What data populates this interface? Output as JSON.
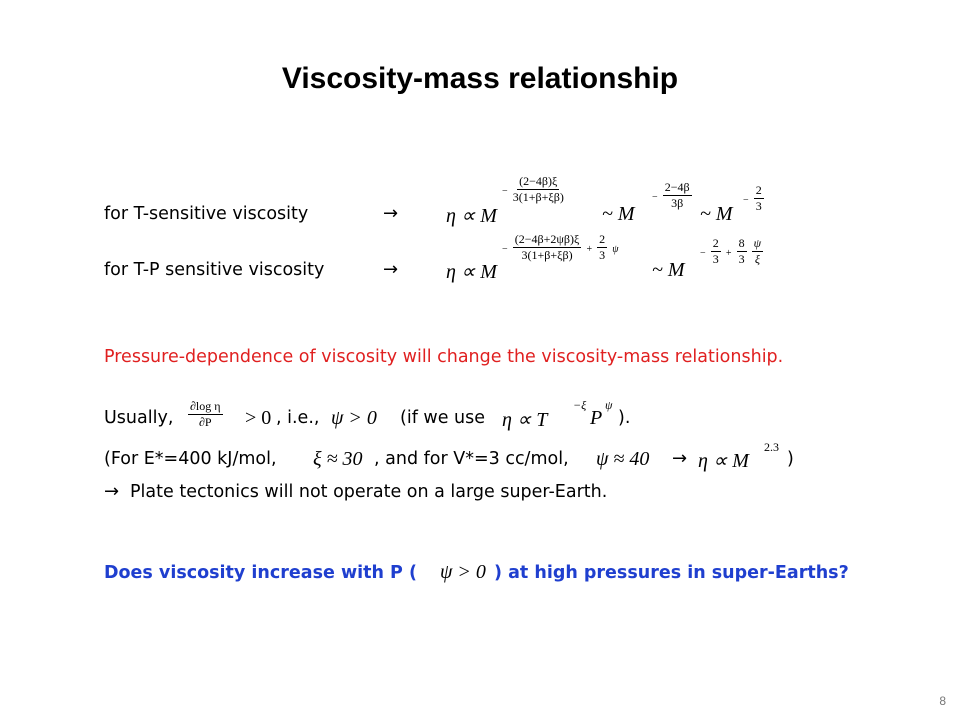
{
  "title": "Viscosity-mass relationship",
  "row1": {
    "label": "for T-sensitive viscosity",
    "arrow": "→",
    "eq_lhs": "η ∝ M",
    "exp1_sign": "−",
    "exp1_num": "(2−4β)ξ",
    "exp1_den": "3(1+β+ξβ)",
    "mid1": "~ M",
    "exp2_sign": "−",
    "exp2_num": "2−4β",
    "exp2_den": "3β",
    "mid2": "~ M",
    "exp3_sign": "−",
    "exp3_num": "2",
    "exp3_den": "3"
  },
  "row2": {
    "label": "for T-P sensitive viscosity",
    "arrow": "→",
    "eq_lhs": "η ∝ M",
    "exp1_sign": "−",
    "exp1_num": "(2−4β+2ψβ)ξ",
    "exp1_den": "3(1+β+ξβ)",
    "exp1_tail": "+",
    "exp1b_num": "2",
    "exp1b_den": "3",
    "exp1b_var": "ψ",
    "mid1": "~ M",
    "exp2_a": "−",
    "exp2_num1": "2",
    "exp2_den1": "3",
    "exp2_plus": "+",
    "exp2_num2": "8",
    "exp2_den2": "3",
    "exp2_fr_num": "ψ",
    "exp2_fr_den": "ξ"
  },
  "red_sentence": "Pressure-dependence of viscosity will change the viscosity-mass relationship.",
  "usually": {
    "lead": "Usually,",
    "frac_num": "∂log η",
    "frac_den": "∂P",
    "gt0": "> 0",
    "ie": ", i.e.,",
    "psi_gt0": "ψ > 0",
    "paren_open": "(if we use",
    "eq": "η ∝ T",
    "exp_xi": "−ξ",
    "p": "P",
    "exp_psi": "ψ",
    "paren_close": ")."
  },
  "forE": {
    "a": "(For E*=400 kJ/mol,",
    "xi_approx": "ξ ≈ 30",
    "b": ", and for V*=3 cc/mol,",
    "psi_approx": "ψ ≈ 40",
    "arrow": "→",
    "eta": "η ∝ M",
    "exp": "2.3",
    "close": ")"
  },
  "plate": {
    "arrow": "→",
    "text": "Plate tectonics will not operate on a large super-Earth."
  },
  "question": {
    "a": "Does viscosity increase with P (",
    "psi": "ψ > 0",
    "b": ") at high pressures in super-Earths?"
  },
  "page_number": "8",
  "colors": {
    "red": "#e02020",
    "blue": "#1f3fcf"
  }
}
